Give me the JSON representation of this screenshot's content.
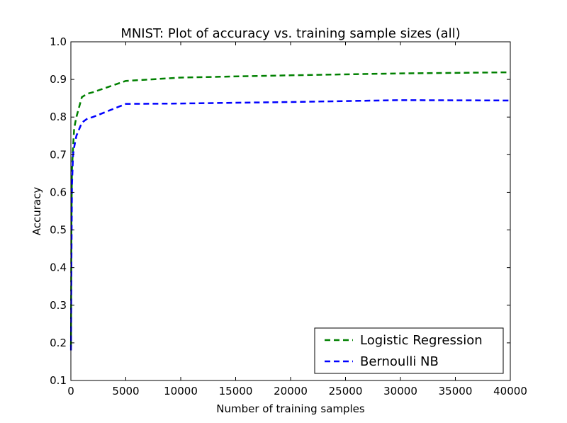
{
  "chart_data": {
    "type": "line",
    "title": "MNIST: Plot of accuracy vs. training sample sizes (all)",
    "xlabel": "Number of training samples",
    "ylabel": "Accuracy",
    "xlim": [
      0,
      40000
    ],
    "ylim": [
      0.1,
      1.0
    ],
    "xticks": [
      0,
      5000,
      10000,
      15000,
      20000,
      25000,
      30000,
      35000,
      40000
    ],
    "yticks": [
      0.1,
      0.2,
      0.3,
      0.4,
      0.5,
      0.6,
      0.7,
      0.8,
      0.9,
      1.0
    ],
    "xtick_labels": [
      "0",
      "5000",
      "10000",
      "15000",
      "20000",
      "25000",
      "30000",
      "35000",
      "40000"
    ],
    "ytick_labels": [
      "0.1",
      "0.2",
      "0.3",
      "0.4",
      "0.5",
      "0.6",
      "0.7",
      "0.8",
      "0.9",
      "1.0"
    ],
    "grid": false,
    "legend_position": "bottom-right",
    "series": [
      {
        "name": "Logistic Regression",
        "color": "#008000",
        "style": "dashed",
        "x": [
          10,
          50,
          100,
          200,
          300,
          500,
          1000,
          1500,
          2000,
          5000,
          10000,
          20000,
          30000,
          40000
        ],
        "y": [
          0.19,
          0.52,
          0.66,
          0.72,
          0.77,
          0.8,
          0.853,
          0.862,
          0.866,
          0.896,
          0.905,
          0.911,
          0.916,
          0.919
        ]
      },
      {
        "name": "Bernoulli NB",
        "color": "#0000ff",
        "style": "dashed",
        "x": [
          10,
          50,
          100,
          200,
          300,
          500,
          1000,
          1500,
          2000,
          5000,
          10000,
          20000,
          30000,
          40000
        ],
        "y": [
          0.18,
          0.42,
          0.62,
          0.7,
          0.72,
          0.75,
          0.785,
          0.796,
          0.8,
          0.835,
          0.836,
          0.84,
          0.845,
          0.844
        ]
      }
    ]
  }
}
